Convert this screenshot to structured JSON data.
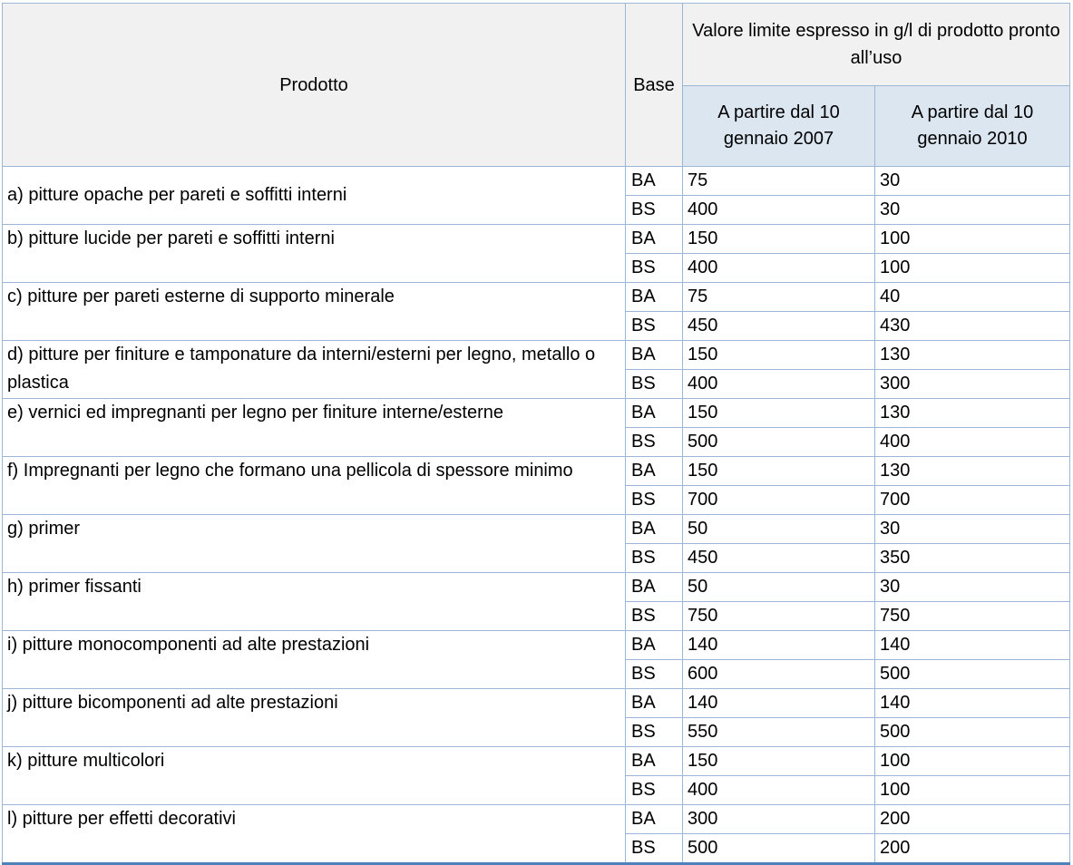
{
  "table": {
    "header": {
      "product_label": "Prodotto",
      "base_label": "Base",
      "value_group_label": "Valore limite espresso in g/l di prodotto pronto all’uso",
      "sub_columns": [
        "A partire dal 10 gennaio 2007",
        "A partire dal 10 gennaio 2010"
      ]
    },
    "colors": {
      "border": "#9cb6d6",
      "bottom_line": "#4f81bd",
      "header_bg": "#f1f1f2",
      "subheader_bg": "#dce6f1"
    },
    "rows": [
      {
        "product": "a) pitture opache per pareti e soffitti interni",
        "label_valign": "middle",
        "entries": [
          {
            "base": "BA",
            "v2007": "75",
            "v2010": "30"
          },
          {
            "base": "BS",
            "v2007": "400",
            "v2010": "30"
          }
        ]
      },
      {
        "product": "b) pitture lucide per pareti e soffitti interni",
        "label_valign": "top",
        "entries": [
          {
            "base": "BA",
            "v2007": "150",
            "v2010": "100"
          },
          {
            "base": "BS",
            "v2007": "400",
            "v2010": "100"
          }
        ]
      },
      {
        "product": "c) pitture per pareti esterne di supporto minerale",
        "label_valign": "top",
        "entries": [
          {
            "base": "BA",
            "v2007": "75",
            "v2010": "40"
          },
          {
            "base": "BS",
            "v2007": "450",
            "v2010": "430"
          }
        ]
      },
      {
        "product": "d) pitture per finiture e tamponature da interni/esterni per legno, metallo o plastica",
        "label_valign": "top",
        "entries": [
          {
            "base": "BA",
            "v2007": "150",
            "v2010": "130"
          },
          {
            "base": "BS",
            "v2007": "400",
            "v2010": "300"
          }
        ]
      },
      {
        "product": "e) vernici ed impregnanti per legno per finiture interne/esterne",
        "label_valign": "top",
        "entries": [
          {
            "base": "BA",
            "v2007": "150",
            "v2010": "130"
          },
          {
            "base": "BS",
            "v2007": "500",
            "v2010": "400"
          }
        ]
      },
      {
        "product": "f) Impregnanti per legno che formano una pellicola di spessore minimo",
        "label_valign": "top",
        "entries": [
          {
            "base": "BA",
            "v2007": "150",
            "v2010": "130"
          },
          {
            "base": "BS",
            "v2007": "700",
            "v2010": "700"
          }
        ]
      },
      {
        "product": "g) primer",
        "label_valign": "top",
        "entries": [
          {
            "base": "BA",
            "v2007": "50",
            "v2010": "30"
          },
          {
            "base": "BS",
            "v2007": "450",
            "v2010": "350"
          }
        ]
      },
      {
        "product": "h) primer fissanti",
        "label_valign": "top",
        "entries": [
          {
            "base": "BA",
            "v2007": "50",
            "v2010": "30"
          },
          {
            "base": "BS",
            "v2007": "750",
            "v2010": "750"
          }
        ]
      },
      {
        "product": "i) pitture monocomponenti ad alte prestazioni",
        "label_valign": "top",
        "entries": [
          {
            "base": "BA",
            "v2007": "140",
            "v2010": "140"
          },
          {
            "base": "BS",
            "v2007": "600",
            "v2010": "500"
          }
        ]
      },
      {
        "product": "j) pitture bicomponenti ad alte prestazioni",
        "label_valign": "top",
        "entries": [
          {
            "base": "BA",
            "v2007": "140",
            "v2010": "140"
          },
          {
            "base": "BS",
            "v2007": "550",
            "v2010": "500"
          }
        ]
      },
      {
        "product": "k) pitture multicolori",
        "label_valign": "top",
        "entries": [
          {
            "base": "BA",
            "v2007": "150",
            "v2010": "100"
          },
          {
            "base": "BS",
            "v2007": "400",
            "v2010": "100"
          }
        ]
      },
      {
        "product": "l) pitture per effetti decorativi",
        "label_valign": "top",
        "entries": [
          {
            "base": "BA",
            "v2007": "300",
            "v2010": "200"
          },
          {
            "base": "BS",
            "v2007": "500",
            "v2010": "200"
          }
        ]
      }
    ]
  }
}
